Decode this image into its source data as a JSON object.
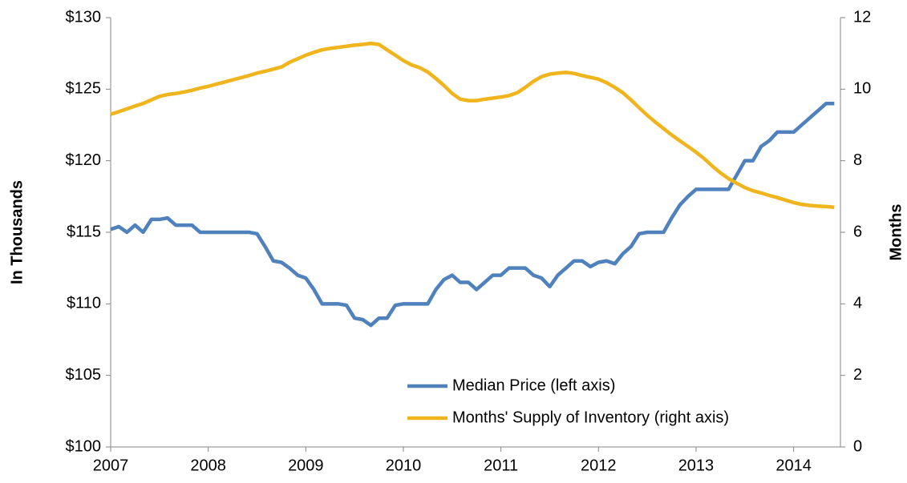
{
  "chart_data": {
    "type": "line",
    "ylabel": "In Thousands",
    "y2label": "Months",
    "x": [
      2007,
      2007.083,
      2007.167,
      2007.25,
      2007.333,
      2007.417,
      2007.5,
      2007.583,
      2007.667,
      2007.75,
      2007.833,
      2007.917,
      2008,
      2008.083,
      2008.167,
      2008.25,
      2008.333,
      2008.417,
      2008.5,
      2008.583,
      2008.667,
      2008.75,
      2008.833,
      2008.917,
      2009,
      2009.083,
      2009.167,
      2009.25,
      2009.333,
      2009.417,
      2009.5,
      2009.583,
      2009.667,
      2009.75,
      2009.833,
      2009.917,
      2010,
      2010.083,
      2010.167,
      2010.25,
      2010.333,
      2010.417,
      2010.5,
      2010.583,
      2010.667,
      2010.75,
      2010.833,
      2010.917,
      2011,
      2011.083,
      2011.167,
      2011.25,
      2011.333,
      2011.417,
      2011.5,
      2011.583,
      2011.667,
      2011.75,
      2011.833,
      2011.917,
      2012,
      2012.083,
      2012.167,
      2012.25,
      2012.333,
      2012.417,
      2012.5,
      2012.583,
      2012.667,
      2012.75,
      2012.833,
      2012.917,
      2013,
      2013.083,
      2013.167,
      2013.25,
      2013.333,
      2013.417,
      2013.5,
      2013.583,
      2013.667,
      2013.75,
      2013.833,
      2013.917,
      2014,
      2014.083,
      2014.167,
      2014.25,
      2014.333,
      2014.417
    ],
    "series": [
      {
        "name": "Median Price (left axis)",
        "color": "#4f81bd",
        "axis": "y",
        "values": [
          115.2,
          115.4,
          115.0,
          115.5,
          115.0,
          115.9,
          115.9,
          116.0,
          115.5,
          115.5,
          115.5,
          115.0,
          115.0,
          115.0,
          115.0,
          115.0,
          115.0,
          115.0,
          114.9,
          114.0,
          113.0,
          112.9,
          112.5,
          112.0,
          111.8,
          111.0,
          110.0,
          110.0,
          110.0,
          109.9,
          109.0,
          108.9,
          108.5,
          109.0,
          109.0,
          109.9,
          110.0,
          110.0,
          110.0,
          110.0,
          111.0,
          111.7,
          112.0,
          111.5,
          111.5,
          111.0,
          111.5,
          112.0,
          112.0,
          112.5,
          112.5,
          112.5,
          112.0,
          111.8,
          111.2,
          112.0,
          112.5,
          113.0,
          113.0,
          112.6,
          112.9,
          113.0,
          112.8,
          113.5,
          114.0,
          114.9,
          115.0,
          115.0,
          115.0,
          116.0,
          116.9,
          117.5,
          118.0,
          118.0,
          118.0,
          118.0,
          118.0,
          119.0,
          120.0,
          120.0,
          121.0,
          121.4,
          122.0,
          122.0,
          122.0,
          122.5,
          123.0,
          123.5,
          124.0,
          124.0
        ]
      },
      {
        "name": "Months' Supply of Inventory (right axis)",
        "color": "#f0b41c",
        "axis": "y2",
        "values": [
          9.3,
          9.37,
          9.45,
          9.53,
          9.6,
          9.7,
          9.8,
          9.85,
          9.88,
          9.92,
          9.97,
          10.03,
          10.08,
          10.14,
          10.2,
          10.26,
          10.32,
          10.38,
          10.45,
          10.5,
          10.56,
          10.62,
          10.75,
          10.85,
          10.95,
          11.03,
          11.1,
          11.14,
          11.17,
          11.2,
          11.23,
          11.25,
          11.28,
          11.25,
          11.1,
          10.95,
          10.8,
          10.68,
          10.6,
          10.48,
          10.3,
          10.1,
          9.88,
          9.72,
          9.68,
          9.68,
          9.72,
          9.75,
          9.78,
          9.82,
          9.9,
          10.05,
          10.22,
          10.35,
          10.42,
          10.45,
          10.47,
          10.44,
          10.38,
          10.33,
          10.28,
          10.18,
          10.05,
          9.9,
          9.7,
          9.48,
          9.27,
          9.08,
          8.9,
          8.72,
          8.56,
          8.4,
          8.24,
          8.06,
          7.85,
          7.66,
          7.5,
          7.37,
          7.25,
          7.16,
          7.1,
          7.03,
          6.97,
          6.9,
          6.83,
          6.78,
          6.75,
          6.73,
          6.72,
          6.7
        ]
      }
    ],
    "xlim": [
      2007,
      2014.48
    ],
    "xticks": [
      2007,
      2008,
      2009,
      2010,
      2011,
      2012,
      2013,
      2014
    ],
    "ylim": [
      100,
      130
    ],
    "yticks": [
      {
        "value": 100,
        "label": "$100"
      },
      {
        "value": 105,
        "label": "$105"
      },
      {
        "value": 110,
        "label": "$110"
      },
      {
        "value": 115,
        "label": "$115"
      },
      {
        "value": 120,
        "label": "$120"
      },
      {
        "value": 125,
        "label": "$125"
      },
      {
        "value": 130,
        "label": "$130"
      }
    ],
    "y2lim": [
      0,
      12
    ],
    "y2ticks": [
      0,
      2,
      4,
      6,
      8,
      10,
      12
    ],
    "grid": false,
    "legend": "lower right"
  }
}
